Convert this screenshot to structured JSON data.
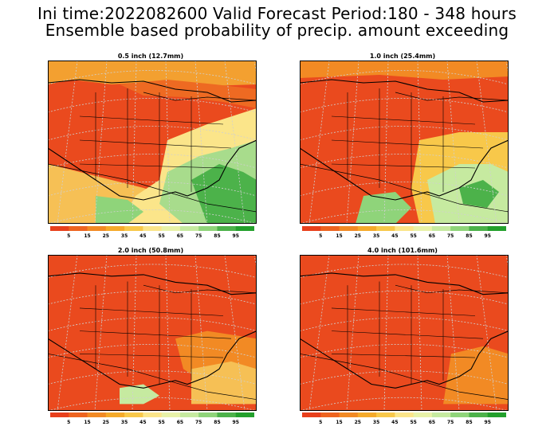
{
  "header": {
    "line1": "Ini time:2022082600  Valid Forecast Period:180 - 348 hours",
    "line2": "Ensemble based probability of precip. amount exceeding"
  },
  "panels": [
    {
      "title": "0.5 inch (12.7mm)",
      "scheme": "wetter"
    },
    {
      "title": "1.0 inch (25.4mm)",
      "scheme": "mid"
    },
    {
      "title": "2.0 inch (50.8mm)",
      "scheme": "dry"
    },
    {
      "title": "4.0 inch (101.6mm)",
      "scheme": "driest"
    }
  ],
  "colorbar": {
    "labels": [
      "5",
      "15",
      "25",
      "35",
      "45",
      "55",
      "65",
      "75",
      "85",
      "95"
    ],
    "colors": [
      "#e8401c",
      "#ee6420",
      "#f28a24",
      "#f5aa2a",
      "#f8c84a",
      "#fbe58a",
      "#e8f2a8",
      "#c6eaa0",
      "#8fd47a",
      "#4cb24a",
      "#23a02c"
    ]
  }
}
